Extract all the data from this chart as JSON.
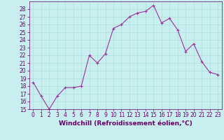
{
  "x": [
    0,
    1,
    2,
    3,
    4,
    5,
    6,
    7,
    8,
    9,
    10,
    11,
    12,
    13,
    14,
    15,
    16,
    17,
    18,
    19,
    20,
    21,
    22,
    23
  ],
  "y": [
    18.5,
    16.7,
    15.0,
    16.7,
    17.8,
    17.8,
    18.0,
    22.0,
    21.0,
    22.2,
    25.5,
    26.0,
    27.0,
    27.5,
    27.7,
    28.5,
    26.2,
    26.8,
    25.3,
    22.5,
    23.5,
    21.2,
    19.8,
    19.5
  ],
  "line_color": "#993399",
  "marker": "+",
  "marker_size": 3,
  "background_color": "#c8eef0",
  "grid_color": "#aadddd",
  "xlabel": "Windchill (Refroidissement éolien,°C)",
  "ylim": [
    15,
    29
  ],
  "xlim": [
    -0.5,
    23.5
  ],
  "yticks": [
    15,
    16,
    17,
    18,
    19,
    20,
    21,
    22,
    23,
    24,
    25,
    26,
    27,
    28
  ],
  "xticks": [
    0,
    1,
    2,
    3,
    4,
    5,
    6,
    7,
    8,
    9,
    10,
    11,
    12,
    13,
    14,
    15,
    16,
    17,
    18,
    19,
    20,
    21,
    22,
    23
  ],
  "tick_fontsize": 5.5,
  "xlabel_fontsize": 6.5,
  "line_color_dark": "#660066",
  "tick_color": "#660066"
}
